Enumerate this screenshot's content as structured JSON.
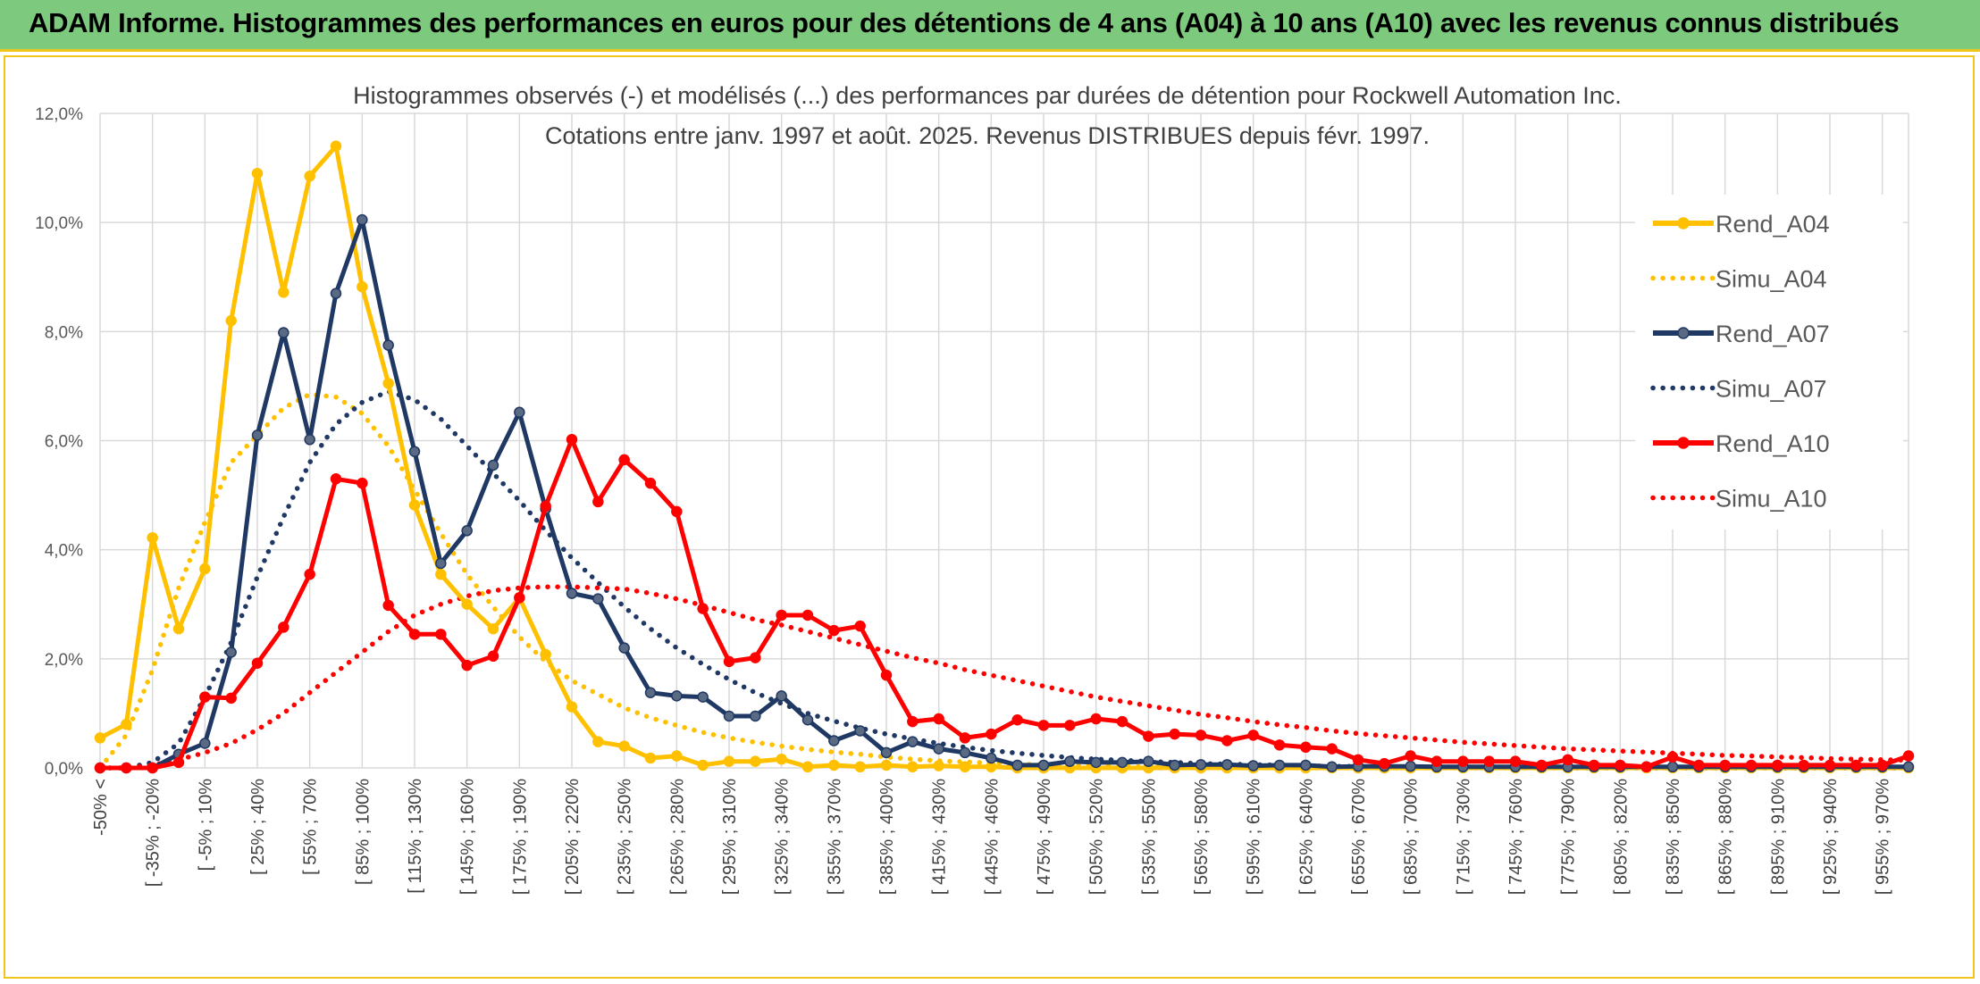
{
  "banner": {
    "title": "ADAM Informe. Histogrammes des performances en euros pour des détentions de 4 ans (A04) à 10 ans (A10) avec les revenus connus distribués"
  },
  "chart_data": {
    "type": "line",
    "title": "Histogrammes observés (-) et modélisés (...) des performances par durées de détention pour Rockwell Automation Inc.",
    "subtitle": "Cotations entre janv. 1997 et août. 2025. Revenus DISTRIBUES depuis févr. 1997.",
    "ylim": [
      0,
      12
    ],
    "y_ticks": [
      "0,0%",
      "2,0%",
      "4,0%",
      "6,0%",
      "8,0%",
      "10,0%",
      "12,0%"
    ],
    "grid": true,
    "legend_position": "right",
    "x_tick_labels": [
      "-50% <",
      "[ -35% ; -20%",
      "[ -5% ; 10%",
      "[ 25% ; 40%",
      "[ 55% ; 70%",
      "[ 85% ; 100%",
      "[ 115% ; 130%",
      "[ 145% ; 160%",
      "[ 175% ; 190%",
      "[ 205% ; 220%",
      "[ 235% ; 250%",
      "[ 265% ; 280%",
      "[ 295% ; 310%",
      "[ 325% ; 340%",
      "[ 355% ; 370%",
      "[ 385% ; 400%",
      "[ 415% ; 430%",
      "[ 445% ; 460%",
      "[ 475% ; 490%",
      "[ 505% ; 520%",
      "[ 535% ; 550%",
      "[ 565% ; 580%",
      "[ 595% ; 610%",
      "[ 625% ; 640%",
      "[ 655% ; 670%",
      "[ 685% ; 700%",
      "[ 715% ; 730%",
      "[ 745% ; 760%",
      "[ 775% ; 790%",
      "[ 805% ; 820%",
      "[ 835% ; 850%",
      "[ 865% ; 880%",
      "[ 895% ; 910%",
      "[ 925% ; 940%",
      "[ 955% ; 970%"
    ],
    "n_points": 70,
    "series": [
      {
        "name": "Rend_A04",
        "color": "#ffc000",
        "style": "solid",
        "markers": true,
        "values": [
          0.55,
          0.8,
          4.22,
          2.55,
          3.65,
          8.2,
          10.9,
          8.72,
          10.85,
          11.4,
          8.82,
          7.05,
          4.82,
          3.55,
          3.0,
          2.55,
          3.12,
          2.08,
          1.12,
          0.48,
          0.4,
          0.18,
          0.22,
          0.05,
          0.12,
          0.12,
          0.16,
          0.02,
          0.05,
          0.02,
          0.05,
          0.02,
          0.04,
          0.02,
          0.02,
          0,
          0,
          0,
          0,
          0,
          0,
          0,
          0,
          0,
          0,
          0,
          0,
          0,
          0,
          0,
          0,
          0,
          0,
          0,
          0,
          0,
          0,
          0,
          0,
          0,
          0,
          0,
          0,
          0,
          0,
          0,
          0,
          0,
          0,
          0
        ]
      },
      {
        "name": "Simu_A04",
        "color": "#ffc000",
        "style": "dotted",
        "markers": false,
        "values": [
          0.0,
          0.6,
          1.8,
          3.3,
          4.5,
          5.6,
          6.1,
          6.6,
          6.85,
          6.8,
          6.5,
          5.9,
          5.1,
          4.3,
          3.55,
          2.95,
          2.4,
          1.95,
          1.6,
          1.35,
          1.1,
          0.92,
          0.78,
          0.65,
          0.55,
          0.47,
          0.4,
          0.34,
          0.29,
          0.25,
          0.2,
          0.16,
          0.13,
          0.11,
          0.09,
          0.07,
          0.06,
          0.05,
          0.04,
          0.03,
          0.02,
          0.02,
          0.01,
          0.01,
          0.01,
          0,
          0,
          0,
          0,
          0,
          0,
          0,
          0,
          0,
          0,
          0,
          0,
          0,
          0,
          0,
          0,
          0,
          0,
          0,
          0,
          0,
          0,
          0,
          0,
          0
        ]
      },
      {
        "name": "Rend_A07",
        "color": "#1f3864",
        "style": "solid",
        "markers": true,
        "values": [
          0.0,
          0.0,
          0.0,
          0.25,
          0.45,
          2.12,
          6.1,
          7.98,
          6.02,
          8.7,
          10.05,
          7.75,
          5.8,
          3.75,
          4.35,
          5.55,
          6.52,
          4.75,
          3.2,
          3.1,
          2.2,
          1.38,
          1.32,
          1.3,
          0.95,
          0.95,
          1.32,
          0.88,
          0.5,
          0.68,
          0.28,
          0.48,
          0.35,
          0.28,
          0.18,
          0.05,
          0.05,
          0.12,
          0.1,
          0.1,
          0.12,
          0.05,
          0.06,
          0.06,
          0.04,
          0.05,
          0.05,
          0.02,
          0.03,
          0.03,
          0.03,
          0.02,
          0.02,
          0.02,
          0.02,
          0.02,
          0.02,
          0.02,
          0.02,
          0.02,
          0.02,
          0.02,
          0.02,
          0.02,
          0.02,
          0.02,
          0.02,
          0.02,
          0.02,
          0.02
        ]
      },
      {
        "name": "Simu_A07",
        "color": "#1f3864",
        "style": "dotted",
        "markers": false,
        "values": [
          0.0,
          0.0,
          0.1,
          0.45,
          1.3,
          2.3,
          3.5,
          4.6,
          5.6,
          6.3,
          6.7,
          6.9,
          6.75,
          6.4,
          5.9,
          5.4,
          4.9,
          4.35,
          3.85,
          3.4,
          2.95,
          2.55,
          2.2,
          1.9,
          1.62,
          1.38,
          1.18,
          1.0,
          0.86,
          0.73,
          0.62,
          0.53,
          0.45,
          0.38,
          0.32,
          0.27,
          0.23,
          0.19,
          0.16,
          0.14,
          0.12,
          0.1,
          0.08,
          0.07,
          0.06,
          0.05,
          0.04,
          0.03,
          0.03,
          0.02,
          0.02,
          0.02,
          0.01,
          0.01,
          0.01,
          0.01,
          0,
          0,
          0,
          0,
          0,
          0,
          0,
          0,
          0,
          0,
          0,
          0,
          0,
          0
        ]
      },
      {
        "name": "Rend_A10",
        "color": "#ff0000",
        "style": "solid",
        "markers": true,
        "values": [
          0.0,
          0.0,
          0.0,
          0.1,
          1.3,
          1.28,
          1.92,
          2.58,
          3.55,
          5.3,
          5.22,
          2.98,
          2.45,
          2.45,
          1.88,
          2.05,
          3.12,
          4.8,
          6.02,
          4.88,
          5.65,
          5.22,
          4.7,
          2.92,
          1.95,
          2.02,
          2.8,
          2.8,
          2.52,
          2.6,
          1.7,
          0.85,
          0.9,
          0.55,
          0.62,
          0.88,
          0.78,
          0.78,
          0.9,
          0.85,
          0.58,
          0.62,
          0.6,
          0.5,
          0.6,
          0.42,
          0.38,
          0.35,
          0.15,
          0.08,
          0.22,
          0.12,
          0.12,
          0.12,
          0.12,
          0.05,
          0.15,
          0.05,
          0.05,
          0.02,
          0.2,
          0.05,
          0.05,
          0.05,
          0.05,
          0.05,
          0.05,
          0.05,
          0.05,
          0.22
        ]
      },
      {
        "name": "Simu_A10",
        "color": "#ff0000",
        "style": "dotted",
        "markers": false,
        "values": [
          0.0,
          0.0,
          0.05,
          0.15,
          0.28,
          0.45,
          0.7,
          1.0,
          1.38,
          1.75,
          2.12,
          2.5,
          2.8,
          3.0,
          3.15,
          3.25,
          3.3,
          3.32,
          3.32,
          3.3,
          3.28,
          3.2,
          3.1,
          2.98,
          2.85,
          2.72,
          2.62,
          2.5,
          2.38,
          2.26,
          2.14,
          2.02,
          1.92,
          1.8,
          1.7,
          1.6,
          1.5,
          1.4,
          1.3,
          1.22,
          1.14,
          1.06,
          0.98,
          0.92,
          0.85,
          0.79,
          0.74,
          0.68,
          0.63,
          0.59,
          0.55,
          0.51,
          0.47,
          0.44,
          0.41,
          0.38,
          0.35,
          0.33,
          0.31,
          0.29,
          0.27,
          0.25,
          0.23,
          0.22,
          0.2,
          0.19,
          0.17,
          0.16,
          0.15,
          0.14
        ]
      }
    ]
  }
}
